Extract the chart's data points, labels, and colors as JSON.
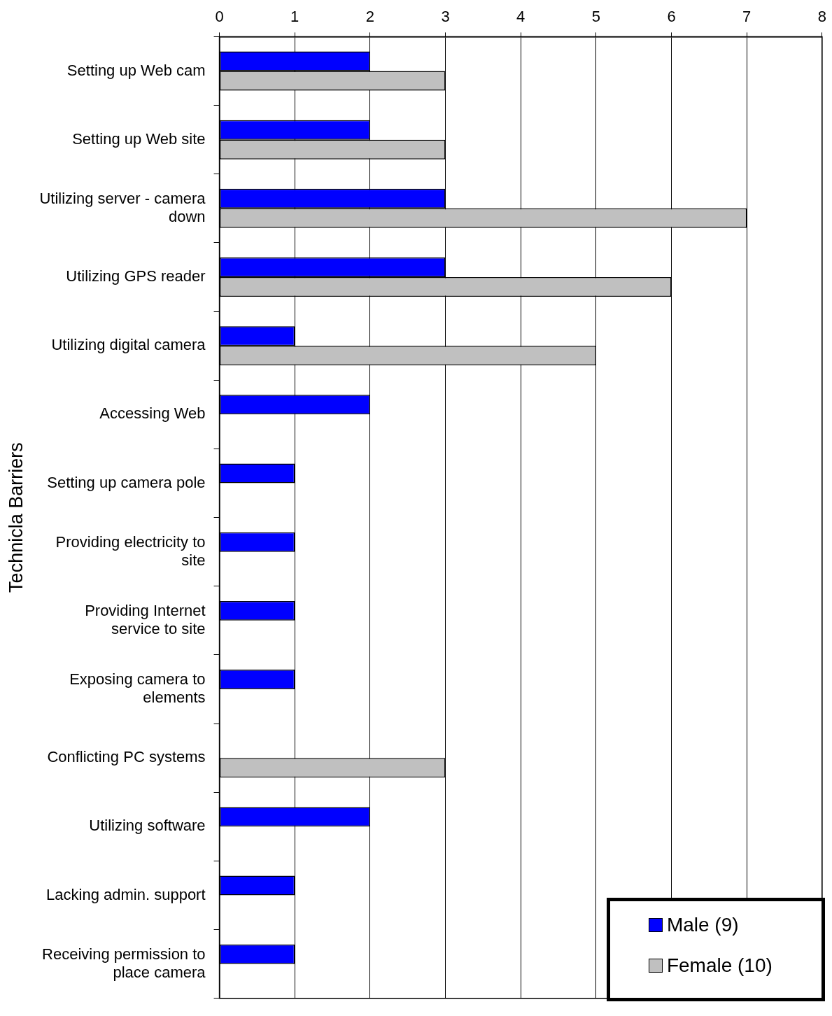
{
  "chart_data": {
    "type": "bar",
    "orientation": "horizontal",
    "ylabel": "Technicla Barriers",
    "categories": [
      "Setting up Web cam",
      "Setting up Web site",
      "Utilizing server - camera down",
      "Utilizing GPS reader",
      "Utilizing digital camera",
      "Accessing Web",
      "Setting up camera pole",
      "Providing electricity to site",
      "Providing Internet service to site",
      "Exposing camera to elements",
      "Conflicting PC systems",
      "Utilizing software",
      "Lacking admin. support",
      "Receiving permission to place camera"
    ],
    "series": [
      {
        "name": "Male (9)",
        "color": "#0000ff",
        "values": [
          2,
          2,
          3,
          3,
          1,
          2,
          1,
          1,
          1,
          1,
          null,
          2,
          1,
          1
        ]
      },
      {
        "name": "Female (10)",
        "color": "#c0c0c0",
        "values": [
          3,
          3,
          7,
          6,
          5,
          null,
          null,
          null,
          null,
          null,
          3,
          null,
          null,
          null
        ]
      }
    ],
    "xlim": [
      0,
      8
    ],
    "xticks": [
      0,
      1,
      2,
      3,
      4,
      5,
      6,
      7,
      8
    ],
    "grid": "x",
    "legend": "bottom right"
  }
}
